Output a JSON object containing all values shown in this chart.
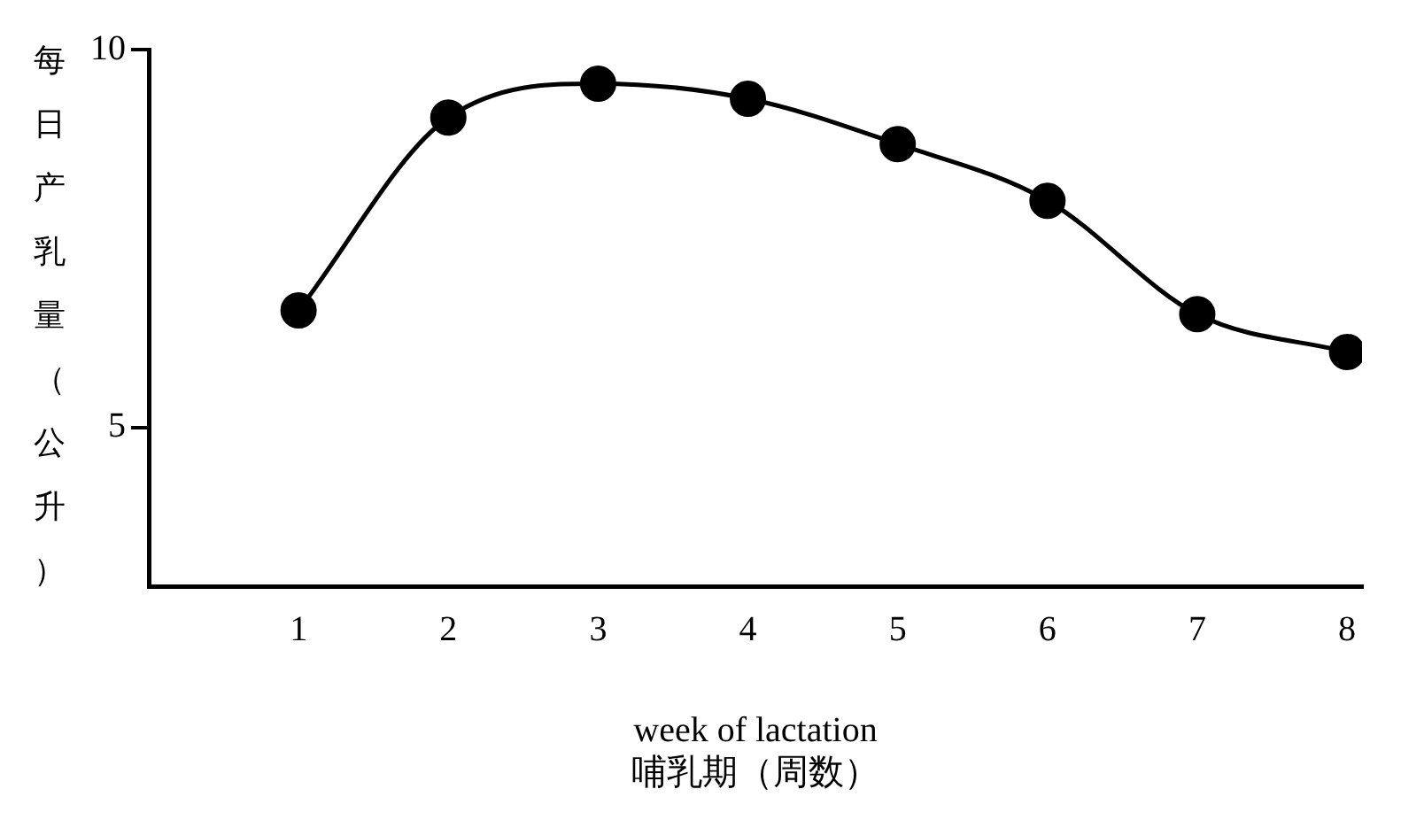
{
  "chart_data": {
    "type": "line",
    "xlabel": "week of lactation\n哺乳期（周数）",
    "ylabel": "每日产乳量（公升）",
    "x": [
      1,
      2,
      3,
      4,
      5,
      6,
      7,
      8
    ],
    "series": [
      {
        "color": "#000000",
        "values": [
          6.55,
          9.1,
          9.55,
          9.35,
          8.75,
          8.0,
          6.5,
          6.0
        ]
      }
    ],
    "xlim": [
      0,
      8.1
    ],
    "xticks": [
      1,
      2,
      3,
      4,
      5,
      6,
      7,
      8
    ],
    "ylim": [
      2.9,
      10
    ],
    "yticks": [
      5,
      10
    ],
    "grid": false,
    "legend": false,
    "marker": "circle",
    "line_style": "solid"
  }
}
